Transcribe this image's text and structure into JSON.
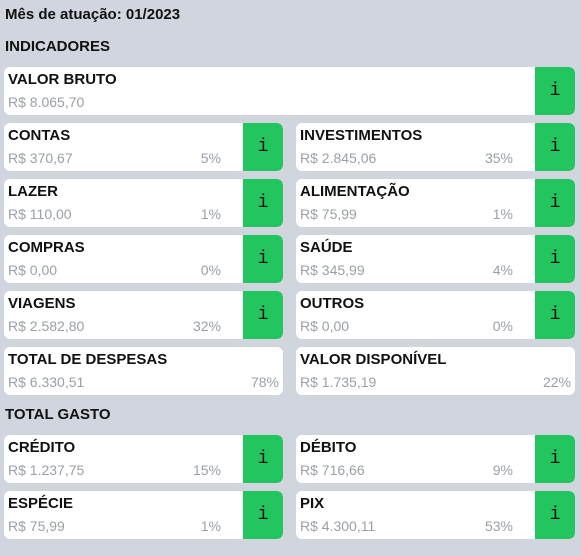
{
  "month_label": "Mês de atuação: 01/2023",
  "sections": {
    "indicators": "INDICADORES",
    "total_spent": "TOTAL GASTO"
  },
  "info_label": "i",
  "info_icon": "info-icon",
  "colors": {
    "background": "#d1d5de",
    "card": "#ffffff",
    "info_button": "#22c55e",
    "muted_text": "#9aa0a8"
  },
  "gross": {
    "label": "VALOR BRUTO",
    "value": "R$ 8.065,70"
  },
  "contas": {
    "label": "CONTAS",
    "value": "R$ 370,67",
    "pct": "5%"
  },
  "investimentos": {
    "label": "INVESTIMENTOS",
    "value": "R$ 2.845,06",
    "pct": "35%"
  },
  "lazer": {
    "label": "LAZER",
    "value": "R$ 110,00",
    "pct": "1%"
  },
  "alimentacao": {
    "label": "ALIMENTAÇÃO",
    "value": "R$ 75,99",
    "pct": "1%"
  },
  "compras": {
    "label": "COMPRAS",
    "value": "R$ 0,00",
    "pct": "0%"
  },
  "saude": {
    "label": "SAÚDE",
    "value": "R$ 345,99",
    "pct": "4%"
  },
  "viagens": {
    "label": "VIAGENS",
    "value": "R$ 2.582,80",
    "pct": "32%"
  },
  "outros": {
    "label": "OUTROS",
    "value": "R$ 0,00",
    "pct": "0%"
  },
  "total_despesas": {
    "label": "TOTAL DE DESPESAS",
    "value": "R$ 6.330,51",
    "pct": "78%"
  },
  "valor_disponivel": {
    "label": "VALOR DISPONÍVEL",
    "value": "R$ 1.735,19",
    "pct": "22%"
  },
  "credito": {
    "label": "CRÉDITO",
    "value": "R$ 1.237,75",
    "pct": "15%"
  },
  "debito": {
    "label": "DÉBITO",
    "value": "R$ 716,66",
    "pct": "9%"
  },
  "especie": {
    "label": "ESPÉCIE",
    "value": "R$ 75,99",
    "pct": "1%"
  },
  "pix": {
    "label": "PIX",
    "value": "R$ 4.300,11",
    "pct": "53%"
  }
}
